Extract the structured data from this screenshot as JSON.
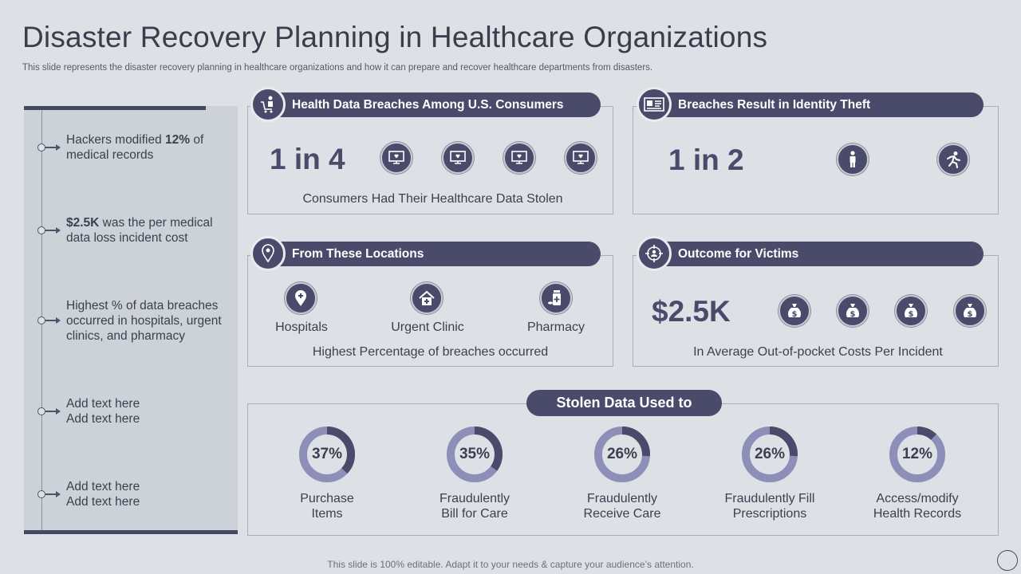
{
  "title": "Disaster Recovery Planning in Healthcare Organizations",
  "subtitle": "This slide represents the disaster recovery planning in healthcare organizations and how it can prepare and recover healthcare departments from disasters.",
  "timeline": [
    {
      "pre": "Hackers modified ",
      "bold": "12%",
      "post": " of medical records"
    },
    {
      "pre": "",
      "bold": "$2.5K",
      "post": " was the per medical data loss incident cost"
    },
    {
      "pre": "Highest % of data breaches occurred in hospitals, urgent clinics, and pharmacy",
      "bold": "",
      "post": ""
    },
    {
      "pre": "Add text here Add text here",
      "bold": "",
      "post": ""
    },
    {
      "pre": "Add text here Add text here",
      "bold": "",
      "post": ""
    }
  ],
  "cards": {
    "breaches": {
      "title": "Health Data Breaches Among U.S. Consumers",
      "stat": "1 in 4",
      "caption": "Consumers Had Their Healthcare  Data Stolen"
    },
    "identity": {
      "title": "Breaches Result in Identity Theft",
      "stat": "1 in 2"
    },
    "locations": {
      "title": "From These  Locations",
      "items": [
        "Hospitals",
        "Urgent Clinic",
        "Pharmacy"
      ],
      "caption": "Highest Percentage of breaches occurred"
    },
    "outcome": {
      "title": "Outcome for Victims",
      "stat": "$2.5K",
      "caption": "In Average Out-of-pocket  Costs Per Incident"
    }
  },
  "stolen": {
    "title": "Stolen Data Used to",
    "items": [
      {
        "pct": "37%",
        "value": 37,
        "line1": "Purchase",
        "line2": "Items"
      },
      {
        "pct": "35%",
        "value": 35,
        "line1": "Fraudulently",
        "line2": "Bill for Care"
      },
      {
        "pct": "26%",
        "value": 26,
        "line1": "Fraudulently",
        "line2": "Receive Care"
      },
      {
        "pct": "26%",
        "value": 26,
        "line1": "Fraudulently  Fill",
        "line2": "Prescriptions"
      },
      {
        "pct": "12%",
        "value": 12,
        "line1": "Access/modify",
        "line2": "Health Records"
      }
    ]
  },
  "footer": "This slide is 100% editable. Adapt it to your needs & capture your audience’s attention.",
  "colors": {
    "accent": "#4a4b6b",
    "ring": "#8d8fb8",
    "background": "#dde1e6"
  }
}
